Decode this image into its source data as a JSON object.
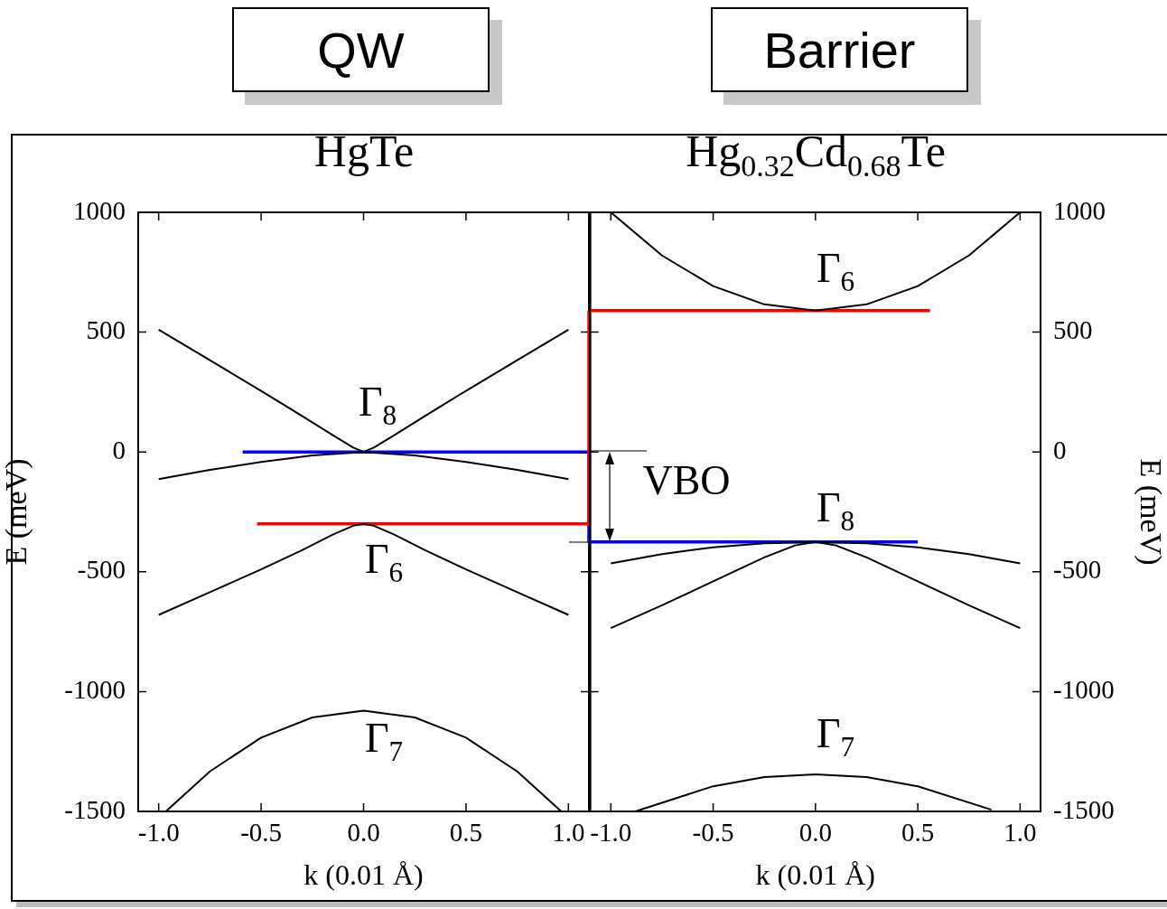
{
  "chart_data": [
    {
      "type": "line",
      "title": "QW",
      "subtitle": "HgTe",
      "xlabel": "k (0.01 Å)",
      "ylabel": "E (meV)",
      "xlim": [
        -1.1,
        1.1
      ],
      "ylim": [
        -1500,
        1000
      ],
      "xticks": [
        {
          "value": -1,
          "label": "-1.0"
        },
        {
          "value": -0.5,
          "label": "-0.5"
        },
        {
          "value": 0,
          "label": "0.0"
        },
        {
          "value": 0.5,
          "label": "0.5"
        },
        {
          "value": 1,
          "label": "1.0"
        }
      ],
      "yticks": [
        -1500,
        -1000,
        -500,
        0,
        500,
        1000
      ],
      "marker": "none",
      "series": [
        {
          "color": "#000000",
          "x": [
            -1,
            -0.75,
            -0.5,
            -0.3,
            -0.15,
            -0.05,
            0,
            0.05,
            0.15,
            0.3,
            0.5,
            0.75,
            1
          ],
          "values": [
            510,
            383,
            255,
            150,
            70,
            18,
            0,
            18,
            70,
            150,
            255,
            383,
            510
          ]
        },
        {
          "color": "#000000",
          "x": [
            -1,
            -0.75,
            -0.5,
            -0.25,
            0,
            0.25,
            0.5,
            0.75,
            1
          ],
          "values": [
            -113,
            -75,
            -42,
            -14,
            0,
            -14,
            -42,
            -75,
            -113
          ]
        },
        {
          "color": "#000000",
          "x": [
            -1,
            -0.75,
            -0.5,
            -0.3,
            -0.15,
            -0.05,
            0,
            0.05,
            0.15,
            0.3,
            0.5,
            0.75,
            1
          ],
          "values": [
            -680,
            -585,
            -490,
            -410,
            -345,
            -308,
            -300,
            -308,
            -345,
            -410,
            -490,
            -585,
            -680
          ]
        },
        {
          "color": "#000000",
          "x": [
            -0.965,
            -0.75,
            -0.5,
            -0.25,
            0,
            0.25,
            0.5,
            0.75,
            0.965
          ],
          "values": [
            -1500,
            -1333,
            -1192,
            -1108,
            -1080,
            -1108,
            -1192,
            -1333,
            -1500
          ]
        },
        {
          "color": "#ff0000",
          "x": [
            -0.52,
            1.1,
            1.1
          ],
          "values": [
            -300,
            -300,
            590
          ]
        },
        {
          "color": "#0000ff",
          "x": [
            -0.59,
            1.1,
            1.1
          ],
          "values": [
            0,
            0,
            -375
          ]
        }
      ],
      "annotations": [
        "Γ$_{8}$",
        "Γ$_{6}$",
        "Γ$_{7}$"
      ]
    },
    {
      "type": "line",
      "title": "Barrier",
      "subtitle": "Hg$_{0.32}$Cd$_{0.68}$Te",
      "xlabel": "k (0.01 Å)",
      "ylabel": "E (meV)",
      "xlim": [
        -1.1,
        1.1
      ],
      "ylim": [
        -1500,
        1000
      ],
      "xticks": [
        {
          "value": -1,
          "label": "-1.0"
        },
        {
          "value": -0.5,
          "label": "-0.5"
        },
        {
          "value": 0,
          "label": "0.0"
        },
        {
          "value": 0.5,
          "label": "0.5"
        },
        {
          "value": 1,
          "label": "1.0"
        }
      ],
      "yticks": [
        -1500,
        -1000,
        -500,
        0,
        500,
        1000
      ],
      "marker": "none",
      "series": [
        {
          "color": "#000000",
          "x": [
            -1,
            -0.75,
            -0.5,
            -0.25,
            0,
            0.25,
            0.5,
            0.75,
            1
          ],
          "values": [
            1000,
            820,
            692,
            616,
            590,
            616,
            692,
            820,
            1000
          ]
        },
        {
          "color": "#000000",
          "x": [
            -1,
            -0.75,
            -0.5,
            -0.25,
            0,
            0.25,
            0.5,
            0.75,
            1
          ],
          "values": [
            -465,
            -426,
            -398,
            -381,
            -375,
            -381,
            -398,
            -426,
            -465
          ]
        },
        {
          "color": "#000000",
          "x": [
            -1,
            -0.75,
            -0.5,
            -0.25,
            -0.1,
            0,
            0.1,
            0.25,
            0.5,
            0.75,
            1
          ],
          "values": [
            -735,
            -640,
            -540,
            -440,
            -390,
            -375,
            -390,
            -440,
            -540,
            -640,
            -735
          ]
        },
        {
          "color": "#000000",
          "x": [
            -0.88,
            -0.5,
            -0.25,
            0,
            0.25,
            0.5,
            0.86
          ],
          "values": [
            -1500,
            -1395,
            -1357,
            -1345,
            -1357,
            -1395,
            -1493
          ]
        },
        {
          "color": "#ff0000",
          "x": [
            -1.1,
            0.56
          ],
          "values": [
            590,
            590
          ]
        },
        {
          "color": "#0000ff",
          "x": [
            -1.1,
            0.5
          ],
          "values": [
            -375,
            -375
          ]
        }
      ],
      "annotations": [
        "Γ$_{6}$",
        "Γ$_{8}$",
        "Γ$_{7}$",
        "VBO"
      ]
    }
  ]
}
